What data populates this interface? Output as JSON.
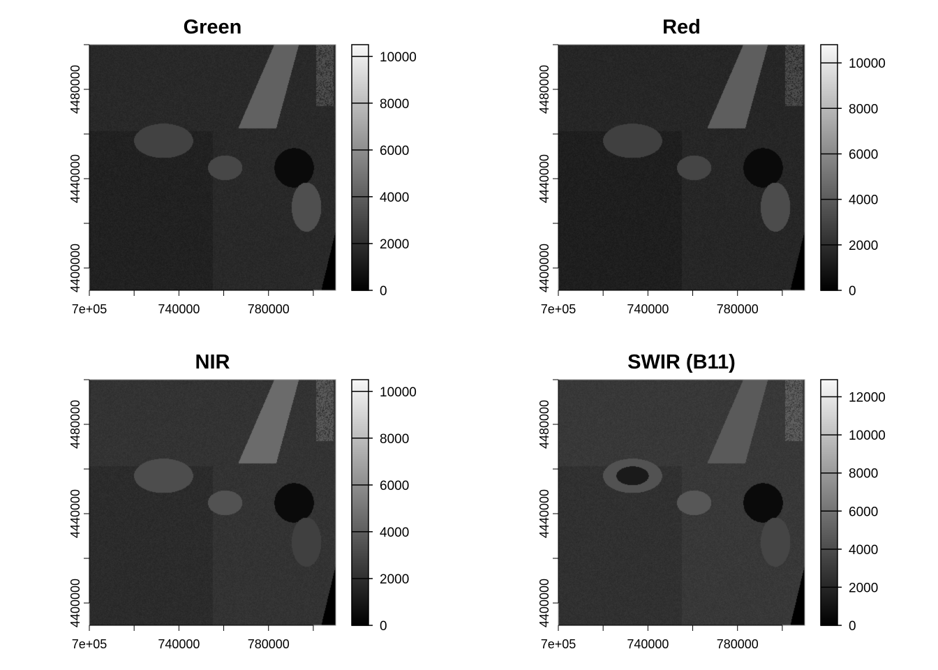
{
  "chart_data": [
    {
      "type": "heatmap",
      "title": "Green",
      "color_scale": "grayscale",
      "x_ticks": [
        700000,
        720000,
        740000,
        760000,
        780000,
        800000
      ],
      "x_tick_labels": [
        "7e+05",
        "740000",
        "780000"
      ],
      "x_labeled_ticks": [
        700000,
        740000,
        780000
      ],
      "xlim": [
        700000,
        810000
      ],
      "y_ticks": [
        4400000,
        4420000,
        4440000,
        4460000,
        4480000,
        4500000
      ],
      "y_tick_labels": [
        "4400000",
        "4440000",
        "4480000"
      ],
      "y_labeled_ticks": [
        4400000,
        4440000,
        4480000
      ],
      "ylim": [
        4390000,
        4500000
      ],
      "colorbar": {
        "ticks": [
          0,
          2000,
          4000,
          6000,
          8000,
          10000
        ],
        "tick_labels": [
          "0",
          "2000",
          "4000",
          "6000",
          "8000",
          "10000"
        ],
        "range": [
          0,
          10500
        ]
      },
      "base_level": 0.16
    },
    {
      "type": "heatmap",
      "title": "Red",
      "color_scale": "grayscale",
      "x_ticks": [
        700000,
        720000,
        740000,
        760000,
        780000,
        800000
      ],
      "x_tick_labels": [
        "7e+05",
        "740000",
        "780000"
      ],
      "x_labeled_ticks": [
        700000,
        740000,
        780000
      ],
      "xlim": [
        700000,
        810000
      ],
      "y_ticks": [
        4400000,
        4420000,
        4440000,
        4460000,
        4480000,
        4500000
      ],
      "y_tick_labels": [
        "4400000",
        "4440000",
        "4480000"
      ],
      "y_labeled_ticks": [
        4400000,
        4440000,
        4480000
      ],
      "ylim": [
        4390000,
        4500000
      ],
      "colorbar": {
        "ticks": [
          0,
          2000,
          4000,
          6000,
          8000,
          10000
        ],
        "tick_labels": [
          "0",
          "2000",
          "4000",
          "6000",
          "8000",
          "10000"
        ],
        "range": [
          0,
          10800
        ]
      },
      "base_level": 0.15
    },
    {
      "type": "heatmap",
      "title": "NIR",
      "color_scale": "grayscale",
      "x_ticks": [
        700000,
        720000,
        740000,
        760000,
        780000,
        800000
      ],
      "x_tick_labels": [
        "7e+05",
        "740000",
        "780000"
      ],
      "x_labeled_ticks": [
        700000,
        740000,
        780000
      ],
      "xlim": [
        700000,
        810000
      ],
      "y_ticks": [
        4400000,
        4420000,
        4440000,
        4460000,
        4480000,
        4500000
      ],
      "y_tick_labels": [
        "4400000",
        "4440000",
        "4480000"
      ],
      "y_labeled_ticks": [
        4400000,
        4440000,
        4480000
      ],
      "ylim": [
        4390000,
        4500000
      ],
      "colorbar": {
        "ticks": [
          0,
          2000,
          4000,
          6000,
          8000,
          10000
        ],
        "tick_labels": [
          "0",
          "2000",
          "4000",
          "6000",
          "8000",
          "10000"
        ],
        "range": [
          0,
          10500
        ]
      },
      "base_level": 0.2
    },
    {
      "type": "heatmap",
      "title": "SWIR (B11)",
      "color_scale": "grayscale",
      "x_ticks": [
        700000,
        720000,
        740000,
        760000,
        780000,
        800000
      ],
      "x_tick_labels": [
        "7e+05",
        "740000",
        "780000"
      ],
      "x_labeled_ticks": [
        700000,
        740000,
        780000
      ],
      "xlim": [
        700000,
        810000
      ],
      "y_ticks": [
        4400000,
        4420000,
        4440000,
        4460000,
        4480000,
        4500000
      ],
      "y_tick_labels": [
        "4400000",
        "4440000",
        "4480000"
      ],
      "y_labeled_ticks": [
        4400000,
        4440000,
        4480000
      ],
      "ylim": [
        4390000,
        4500000
      ],
      "colorbar": {
        "ticks": [
          0,
          2000,
          4000,
          6000,
          8000,
          10000,
          12000
        ],
        "tick_labels": [
          "0",
          "2000",
          "4000",
          "6000",
          "8000",
          "10000",
          "12000"
        ],
        "range": [
          0,
          12900
        ]
      },
      "base_level": 0.22
    }
  ]
}
